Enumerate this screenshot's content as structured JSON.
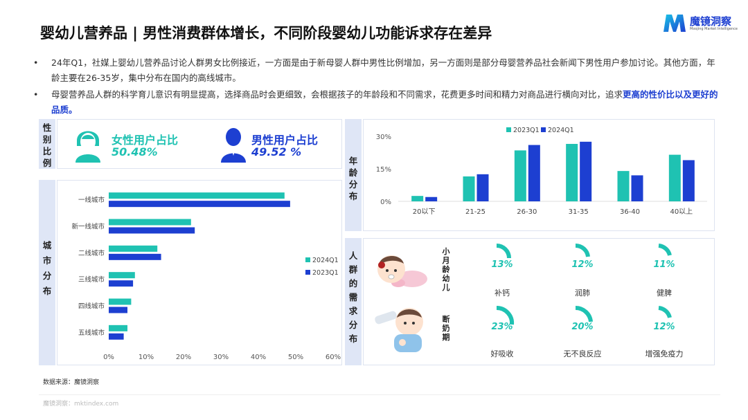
{
  "title": "婴幼儿营养品 | 男性消费群体增长，不同阶段婴幼儿功能诉求存在差异",
  "logo": {
    "name": "魔镜洞察",
    "tagline": "Moojing Market Intelligence",
    "color": "#1d3fd1"
  },
  "bullets": [
    {
      "text": "24年Q1，社媒上婴幼儿营养品讨论人群男女比例接近，一方面是由于新母婴人群中男性比例增加，另一方面则是部分母婴营养品社会新闻下男性用户参加讨论。其他方面，年龄主要在26-35岁，集中分布在国内的高线城市。",
      "highlight": ""
    },
    {
      "text": "母婴营养品人群的科学育儿意识有明显提高，选择商品时会更细致，会根据孩子的年龄段和不同需求，花费更多时间和精力对商品进行横向对比，追求",
      "highlight": "更高的性价比以及更好的品质。"
    }
  ],
  "bullet_marker": "•",
  "gender": {
    "side_label": "性别比例",
    "female": {
      "label": "女性用户占比",
      "value": "50.48%",
      "icon": "female-user-icon",
      "color": "#1fc2b2"
    },
    "male": {
      "label": "男性用户占比",
      "value": "49.52 %",
      "icon": "male-user-icon",
      "color": "#1d3fd1"
    }
  },
  "city": {
    "side_label": "城市分布"
  },
  "age": {
    "side_label": "年龄分布"
  },
  "needs": {
    "side_label": "人群的需求分布",
    "stages": [
      {
        "label": "小月龄幼儿",
        "icon": "crawling-baby-icon",
        "items": [
          {
            "pct": "13%",
            "name": "补钙",
            "value": 13
          },
          {
            "pct": "12%",
            "name": "润肺",
            "value": 12
          },
          {
            "pct": "11%",
            "name": "健脾",
            "value": 11
          }
        ]
      },
      {
        "label": "断奶期",
        "icon": "bottle-baby-icon",
        "items": [
          {
            "pct": "23%",
            "name": "好吸收",
            "value": 23
          },
          {
            "pct": "20%",
            "name": "无不良反应",
            "value": 20
          },
          {
            "pct": "12%",
            "name": "增强免疫力",
            "value": 12
          }
        ]
      }
    ]
  },
  "footer": {
    "source": "数据来源：魔镜洞察",
    "watermark": "魔镜洞察：mktindex.com"
  },
  "colors": {
    "teal": "#1fc2b2",
    "blue": "#1d3fd1",
    "sidebar": "#dfe6f6"
  },
  "chart_data": [
    {
      "type": "bar",
      "orientation": "horizontal",
      "categories": [
        "一线城市",
        "新一线城市",
        "二线城市",
        "三线城市",
        "四线城市",
        "五线城市"
      ],
      "series": [
        {
          "name": "2024Q1",
          "color": "#1fc2b2",
          "values": [
            47,
            22,
            13,
            7,
            6,
            5
          ]
        },
        {
          "name": "2023Q1",
          "color": "#1d3fd1",
          "values": [
            48.5,
            23,
            14,
            6.5,
            5,
            4
          ]
        }
      ],
      "xlim": [
        0,
        60
      ],
      "xticks": [
        "0%",
        "10%",
        "20%",
        "30%",
        "40%",
        "50%",
        "60%"
      ],
      "legend": "right"
    },
    {
      "type": "bar",
      "categories": [
        "20以下",
        "21-25",
        "26-30",
        "31-35",
        "36-40",
        "40以上"
      ],
      "series": [
        {
          "name": "2023Q1",
          "color": "#1fc2b2",
          "values": [
            2.5,
            11.5,
            23.5,
            26.5,
            14,
            21.5
          ]
        },
        {
          "name": "2024Q1",
          "color": "#1d3fd1",
          "values": [
            2,
            12.5,
            26,
            27.5,
            12,
            19
          ]
        }
      ],
      "ylim": [
        0,
        30
      ],
      "yticks": [
        "0%",
        "15%",
        "30%"
      ],
      "legend": "top"
    }
  ]
}
